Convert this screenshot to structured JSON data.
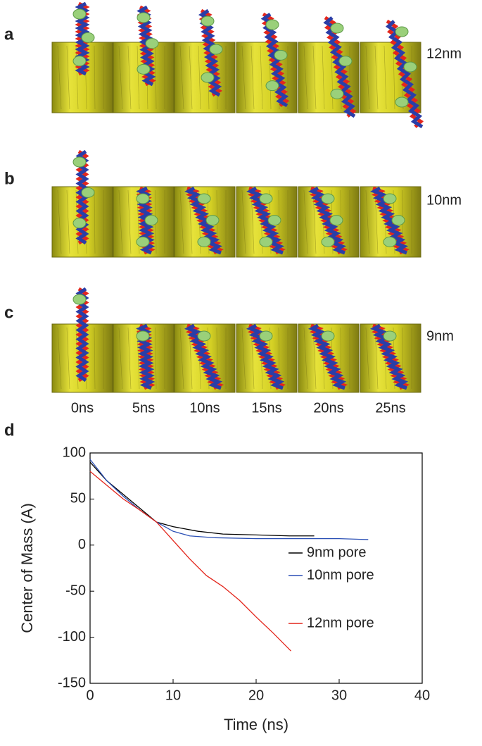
{
  "panels": [
    {
      "label": "a",
      "pore": "12nm"
    },
    {
      "label": "b",
      "pore": "10nm"
    },
    {
      "label": "c",
      "pore": "9nm"
    }
  ],
  "times": [
    "0ns",
    "5ns",
    "10ns",
    "15ns",
    "20ns",
    "25ns"
  ],
  "chart_data": {
    "type": "line",
    "panel_label": "d",
    "x_label": "Time (ns)",
    "y_label": "Center of Mass (A)",
    "xlim": [
      0,
      40
    ],
    "ylim": [
      -150,
      100
    ],
    "xticks": [
      0,
      10,
      20,
      30,
      40
    ],
    "yticks": [
      -150,
      -100,
      -50,
      0,
      50,
      100
    ],
    "series": [
      {
        "name": "9nm pore",
        "color": "#000000",
        "x": [
          0,
          2,
          4,
          6,
          8,
          10,
          13,
          16,
          20,
          24,
          27
        ],
        "values": [
          90,
          70,
          55,
          40,
          25,
          20,
          15,
          12,
          11,
          10,
          10
        ]
      },
      {
        "name": "10nm pore",
        "color": "#2a4fb5",
        "x": [
          0,
          2,
          4,
          6,
          8,
          10,
          12,
          15,
          20,
          25,
          30,
          33.5
        ],
        "values": [
          93,
          70,
          53,
          38,
          25,
          15,
          10,
          8,
          7,
          7,
          7,
          6
        ]
      },
      {
        "name": "12nm pore",
        "color": "#e3261c",
        "x": [
          0,
          2,
          4,
          6,
          8,
          10,
          12,
          14,
          16,
          18,
          20,
          22,
          24.2
        ],
        "values": [
          80,
          65,
          50,
          38,
          25,
          5,
          -15,
          -33,
          -45,
          -60,
          -78,
          -95,
          -115
        ]
      }
    ]
  }
}
